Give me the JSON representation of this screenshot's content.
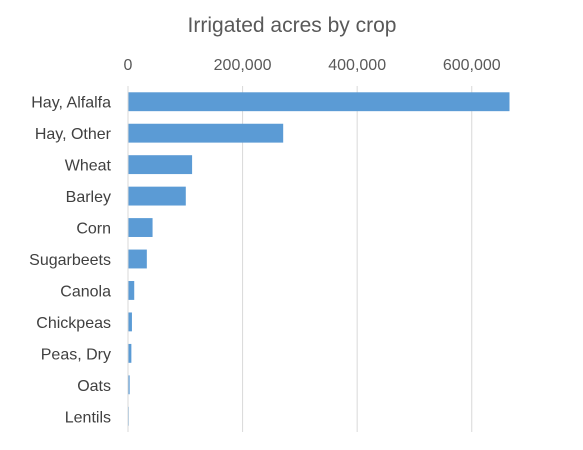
{
  "chart_data": {
    "type": "bar",
    "orientation": "horizontal",
    "title": "Irrigated acres by crop",
    "xlabel": "",
    "ylabel": "",
    "categories": [
      "Hay, Alfalfa",
      "Hay, Other",
      "Wheat",
      "Barley",
      "Corn",
      "Sugarbeets",
      "Canola",
      "Chickpeas",
      "Peas, Dry",
      "Oats",
      "Lentils"
    ],
    "values": [
      665000,
      270000,
      111000,
      100000,
      42000,
      32000,
      10000,
      6000,
      5000,
      2000,
      500
    ],
    "xlim": [
      0,
      665000
    ],
    "x_ticks": [
      0,
      200000,
      400000,
      600000
    ],
    "x_tick_labels": [
      "0",
      "200,000",
      "400,000",
      "600,000"
    ],
    "x_axis_position": "top",
    "grid": true,
    "legend": "none",
    "bar_color": "#5b9bd5"
  }
}
